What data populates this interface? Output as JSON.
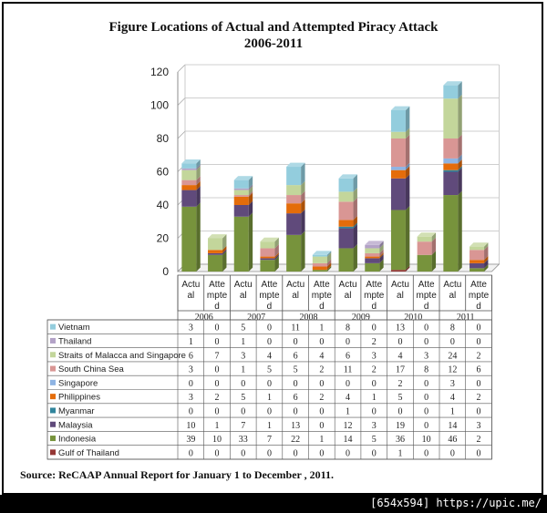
{
  "title_line1": "Figure   Locations of Actual and Attempted  Piracy Attack",
  "title_line2": "2006-2011",
  "source": "Source: ReCAAP Annual Report for January 1 to December , 2011.",
  "watermark": "[654x594] https://upic.me/",
  "chart_data": {
    "type": "bar",
    "stacked": true,
    "ylim": [
      0,
      120
    ],
    "yticks": [
      0,
      20,
      40,
      60,
      80,
      100,
      120
    ],
    "grid": true,
    "legend": "table-below",
    "years": [
      "2006",
      "2007",
      "2008",
      "2009",
      "2010",
      "2011"
    ],
    "column_labels": [
      [
        "Actu",
        "al"
      ],
      [
        "Atte",
        "mpte",
        "d"
      ],
      [
        "Actu",
        "al"
      ],
      [
        "Atte",
        "mpte",
        "d"
      ],
      [
        "Actu",
        "al"
      ],
      [
        "Atte",
        "mpte",
        "d"
      ],
      [
        "Actu",
        "al"
      ],
      [
        "Atte",
        "mpte",
        "d"
      ],
      [
        "Actu",
        "al"
      ],
      [
        "Atte",
        "mpte",
        "d"
      ],
      [
        "Actu",
        "al"
      ],
      [
        "Atte",
        "mpte",
        "d"
      ]
    ],
    "series": [
      {
        "name": "Gulf of Thailand",
        "color": "#953735",
        "values": [
          0,
          0,
          0,
          0,
          0,
          0,
          0,
          0,
          1,
          0,
          0,
          0
        ]
      },
      {
        "name": "Indonesia",
        "color": "#77933c",
        "values": [
          39,
          10,
          33,
          7,
          22,
          1,
          14,
          5,
          36,
          10,
          46,
          2
        ]
      },
      {
        "name": "Malaysia",
        "color": "#604a7b",
        "values": [
          10,
          1,
          7,
          1,
          13,
          0,
          12,
          3,
          19,
          0,
          14,
          3
        ]
      },
      {
        "name": "Myanmar",
        "color": "#31859c",
        "values": [
          0,
          0,
          0,
          0,
          0,
          0,
          1,
          0,
          0,
          0,
          1,
          0
        ]
      },
      {
        "name": "Philippines",
        "color": "#e46c0a",
        "values": [
          3,
          2,
          5,
          1,
          6,
          2,
          4,
          1,
          5,
          0,
          4,
          2
        ]
      },
      {
        "name": "Singapore",
        "color": "#8eb4e3",
        "values": [
          0,
          0,
          0,
          0,
          0,
          0,
          0,
          0,
          2,
          0,
          3,
          0
        ]
      },
      {
        "name": "South China Sea",
        "color": "#d99694",
        "values": [
          3,
          0,
          1,
          5,
          5,
          2,
          11,
          2,
          17,
          8,
          12,
          6
        ]
      },
      {
        "name": "Straits of Malacca and Singapore",
        "color": "#c3d69b",
        "values": [
          6,
          7,
          3,
          4,
          6,
          4,
          6,
          3,
          4,
          3,
          24,
          2
        ]
      },
      {
        "name": "Thailand",
        "color": "#b3a2c7",
        "values": [
          1,
          0,
          1,
          0,
          0,
          0,
          0,
          2,
          0,
          0,
          0,
          0
        ]
      },
      {
        "name": "Vietnam",
        "color": "#93cddd",
        "values": [
          3,
          0,
          5,
          0,
          11,
          1,
          8,
          0,
          13,
          0,
          8,
          0
        ]
      }
    ]
  }
}
